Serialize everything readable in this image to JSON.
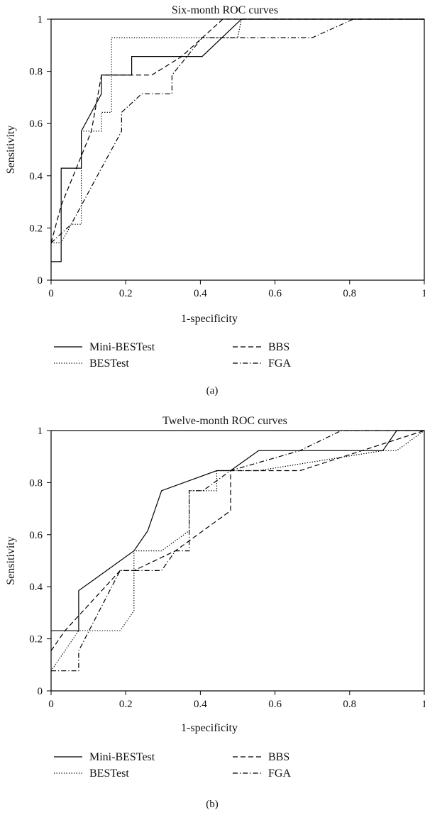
{
  "figure": {
    "legend_labels": {
      "mini": "Mini-BESTest",
      "bes": "BESTest",
      "bbs": "BBS",
      "fga": "FGA"
    }
  },
  "chart_data": [
    {
      "type": "line",
      "title": "Six-month ROC curves",
      "xlabel": "1-specificity",
      "ylabel": "Sensitivity",
      "panel_label": "(a)",
      "xlim": [
        0,
        1
      ],
      "ylim": [
        0,
        1
      ],
      "xticks": [
        "0",
        "0.2",
        "0.4",
        "0.6",
        "0.8",
        "1"
      ],
      "yticks": [
        "0",
        "0.2",
        "0.4",
        "0.6",
        "0.8",
        "1"
      ],
      "grid": false,
      "legend_position": "below",
      "series": [
        {
          "name": "Mini-BESTest",
          "style": "solid",
          "x": [
            0,
            0.027,
            0.027,
            0.081,
            0.081,
            0.135,
            0.135,
            0.216,
            0.216,
            0.405,
            0.51,
            1
          ],
          "y": [
            0.071,
            0.071,
            0.429,
            0.429,
            0.571,
            0.714,
            0.786,
            0.786,
            0.857,
            0.857,
            1,
            1
          ]
        },
        {
          "name": "BESTest",
          "style": "dotted",
          "x": [
            0,
            0.027,
            0.054,
            0.081,
            0.081,
            0.135,
            0.135,
            0.162,
            0.162,
            0.5,
            0.51,
            1
          ],
          "y": [
            0.143,
            0.143,
            0.214,
            0.214,
            0.571,
            0.571,
            0.643,
            0.643,
            0.929,
            0.929,
            1,
            1
          ]
        },
        {
          "name": "BBS",
          "style": "dashed",
          "x": [
            0,
            0.027,
            0.108,
            0.135,
            0.27,
            0.35,
            0.46,
            1
          ],
          "y": [
            0.143,
            0.286,
            0.571,
            0.786,
            0.786,
            0.857,
            1,
            1
          ]
        },
        {
          "name": "FGA",
          "style": "dash-dot",
          "x": [
            0,
            0.054,
            0.081,
            0.135,
            0.189,
            0.189,
            0.243,
            0.27,
            0.324,
            0.324,
            0.405,
            0.7,
            0.81,
            1
          ],
          "y": [
            0.143,
            0.214,
            0.286,
            0.429,
            0.571,
            0.643,
            0.714,
            0.714,
            0.714,
            0.786,
            0.929,
            0.929,
            1,
            1
          ]
        }
      ]
    },
    {
      "type": "line",
      "title": "Twelve-month ROC curves",
      "xlabel": "1-specificity",
      "ylabel": "Sensitivity",
      "panel_label": "(b)",
      "xlim": [
        0,
        1
      ],
      "ylim": [
        0,
        1
      ],
      "xticks": [
        "0",
        "0.2",
        "0.4",
        "0.6",
        "0.8",
        "1"
      ],
      "yticks": [
        "0",
        "0.2",
        "0.4",
        "0.6",
        "0.8",
        "1"
      ],
      "grid": false,
      "legend_position": "below",
      "series": [
        {
          "name": "Mini-BESTest",
          "style": "solid",
          "x": [
            0,
            0.074,
            0.074,
            0.222,
            0.259,
            0.296,
            0.444,
            0.481,
            0.556,
            0.889,
            0.926,
            1
          ],
          "y": [
            0.231,
            0.231,
            0.385,
            0.538,
            0.615,
            0.769,
            0.846,
            0.846,
            0.923,
            0.923,
            1,
            1
          ]
        },
        {
          "name": "BESTest",
          "style": "dotted",
          "x": [
            0,
            0.074,
            0.185,
            0.222,
            0.222,
            0.296,
            0.37,
            0.37,
            0.444,
            0.444,
            0.556,
            0.889,
            0.926,
            1
          ],
          "y": [
            0.077,
            0.231,
            0.231,
            0.308,
            0.538,
            0.538,
            0.615,
            0.769,
            0.769,
            0.846,
            0.846,
            0.923,
            0.923,
            1
          ]
        },
        {
          "name": "BBS",
          "style": "dashed",
          "x": [
            0,
            0.037,
            0.185,
            0.222,
            0.333,
            0.481,
            0.481,
            0.667,
            1
          ],
          "y": [
            0.154,
            0.231,
            0.462,
            0.462,
            0.538,
            0.692,
            0.846,
            0.846,
            1
          ]
        },
        {
          "name": "FGA",
          "style": "dash-dot",
          "x": [
            0,
            0.074,
            0.074,
            0.185,
            0.296,
            0.333,
            0.37,
            0.37,
            0.407,
            0.481,
            0.667,
            0.778,
            1
          ],
          "y": [
            0.077,
            0.077,
            0.154,
            0.462,
            0.462,
            0.538,
            0.538,
            0.769,
            0.769,
            0.846,
            0.923,
            1,
            1
          ]
        }
      ]
    }
  ]
}
